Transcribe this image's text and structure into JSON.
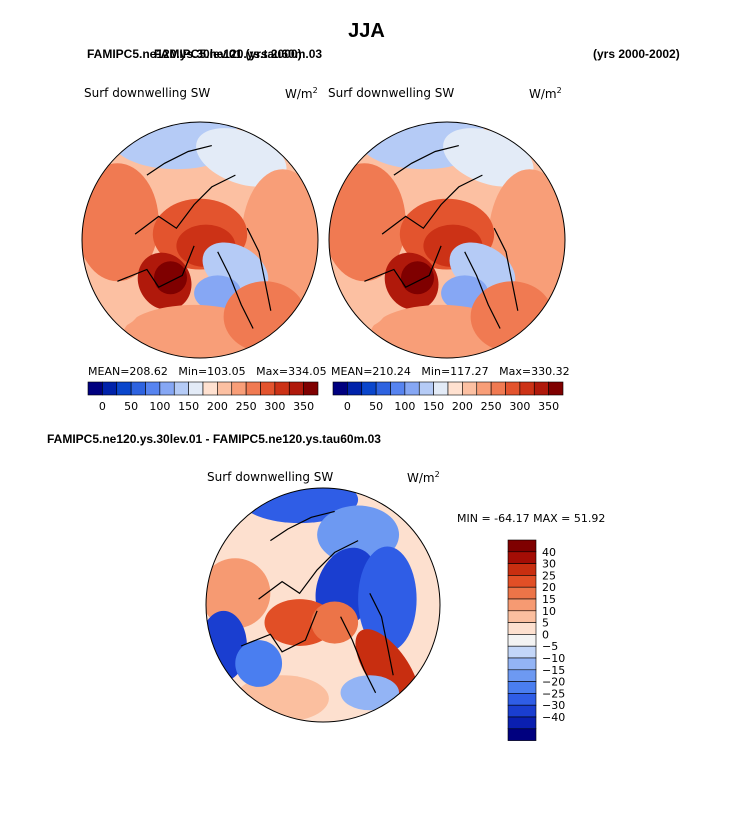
{
  "page": {
    "title": "JJA",
    "case_label_overlap": "FAMIPC5.ne120.ys.30lev.01 (yrs 2000)",
    "case_label_b": "FAMIPC5.ne120.ys.tau60m.03",
    "years_right": "(yrs 2000-2002)",
    "diff_title": "FAMIPC5.ne120.ys.30lev.01 - FAMIPC5.ne120.ys.tau60m.03"
  },
  "colors": {
    "full_field": [
      "#00007f",
      "#0022aa",
      "#0a46cc",
      "#2e63e0",
      "#5784f0",
      "#86a7f4",
      "#b5cbf6",
      "#e3ebf7",
      "#ffe1d0",
      "#fcc0a2",
      "#f89e78",
      "#f07a52",
      "#e3542e",
      "#cc3216",
      "#b0190b",
      "#7f0000"
    ],
    "diff": [
      "#00007f",
      "#0a1fb0",
      "#1a3ed0",
      "#2f5de6",
      "#4a7ef0",
      "#6d99f2",
      "#93b4f5",
      "#c3d6f8",
      "#f3f3f3",
      "#fde0cf",
      "#fbbf9f",
      "#f69a72",
      "#ec7448",
      "#e14f26",
      "#c82e10",
      "#a40d05",
      "#7f0000"
    ]
  },
  "chart_data": [
    {
      "type": "heatmap",
      "title": "Surf downwelling SW",
      "units": "W/m",
      "units_sup": "2",
      "projection": "north polar stereographic",
      "stats": {
        "mean_label": "MEAN=",
        "mean": "208.62",
        "min_label": "Min=",
        "min": "103.05",
        "max_label": "Max=",
        "max": "334.05"
      },
      "colorbar": {
        "orientation": "horizontal",
        "vmin": 0,
        "vmax": 350,
        "step": 25,
        "tick_labels": [
          "0",
          "50",
          "100",
          "150",
          "200",
          "250",
          "300",
          "350"
        ]
      }
    },
    {
      "type": "heatmap",
      "title": "Surf downwelling SW",
      "units": "W/m",
      "units_sup": "2",
      "projection": "north polar stereographic",
      "stats": {
        "mean_label": "MEAN=",
        "mean": "210.24",
        "min_label": "Min=",
        "min": "117.27",
        "max_label": "Max=",
        "max": "330.32"
      },
      "colorbar": {
        "orientation": "horizontal",
        "vmin": 0,
        "vmax": 350,
        "step": 25,
        "tick_labels": [
          "0",
          "50",
          "100",
          "150",
          "200",
          "250",
          "300",
          "350"
        ]
      }
    },
    {
      "type": "heatmap",
      "title": "Surf downwelling SW",
      "units": "W/m",
      "units_sup": "2",
      "projection": "north polar stereographic",
      "stats_text": "MIN = -64.17 MAX =  51.92",
      "colorbar": {
        "orientation": "vertical",
        "levels": [
          -40,
          -30,
          -25,
          -20,
          -15,
          -10,
          -5,
          0,
          5,
          10,
          15,
          20,
          25,
          30,
          40
        ],
        "tick_labels": [
          "40",
          "30",
          "25",
          "20",
          "15",
          "10",
          "5",
          "0",
          "−5",
          "−10",
          "−15",
          "−20",
          "−25",
          "−30",
          "−40"
        ]
      }
    }
  ]
}
